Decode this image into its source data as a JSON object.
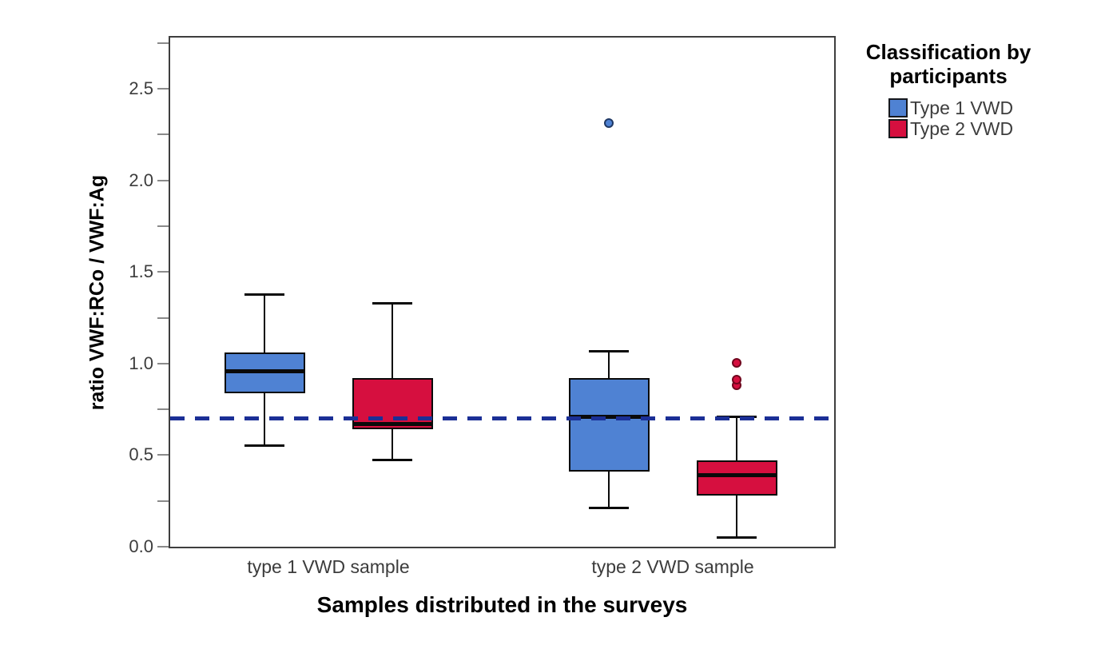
{
  "chart_data": {
    "type": "boxplot",
    "title": "",
    "xlabel": "Samples distributed in the surveys",
    "ylabel": "ratio VWF:RCo / VWF:Ag",
    "ylim": [
      0,
      2.78
    ],
    "grid": false,
    "y_axis": {
      "major_ticks": [
        0,
        0.5,
        1.0,
        1.5,
        2.0,
        2.5
      ],
      "major_tick_labels": [
        "0.0",
        "0.5",
        "1.0",
        "1.5",
        "2.0",
        "2.5"
      ],
      "minor_ticks": [
        0.25,
        0.75,
        1.25,
        1.75,
        2.25,
        2.75
      ]
    },
    "categories": [
      "type 1 VWD sample",
      "type 2 VWD sample"
    ],
    "reference_line": {
      "value": 0.7,
      "style": "dashed",
      "color": "#1b2f96"
    },
    "legend": {
      "title": "Classification by participants",
      "position": "right"
    },
    "series": [
      {
        "name": "Type 1 VWD",
        "color": "#4f82d3",
        "outline": "#1f3864",
        "boxes": [
          {
            "category": "type 1 VWD sample",
            "whisker_low": 0.55,
            "q1": 0.84,
            "median": 0.96,
            "q3": 1.06,
            "whisker_high": 1.38,
            "outliers": []
          },
          {
            "category": "type 2 VWD sample",
            "whisker_low": 0.21,
            "q1": 0.41,
            "median": 0.71,
            "q3": 0.92,
            "whisker_high": 1.07,
            "outliers": [
              2.31
            ]
          }
        ]
      },
      {
        "name": "Type 2 VWD",
        "color": "#d60f3f",
        "outline": "#70061e",
        "boxes": [
          {
            "category": "type 1 VWD sample",
            "whisker_low": 0.47,
            "q1": 0.64,
            "median": 0.67,
            "q3": 0.92,
            "whisker_high": 1.33,
            "outliers": []
          },
          {
            "category": "type 2 VWD sample",
            "whisker_low": 0.05,
            "q1": 0.28,
            "median": 0.39,
            "q3": 0.47,
            "whisker_high": 0.71,
            "outliers": [
              0.88,
              0.91,
              1.0
            ]
          }
        ]
      }
    ]
  }
}
